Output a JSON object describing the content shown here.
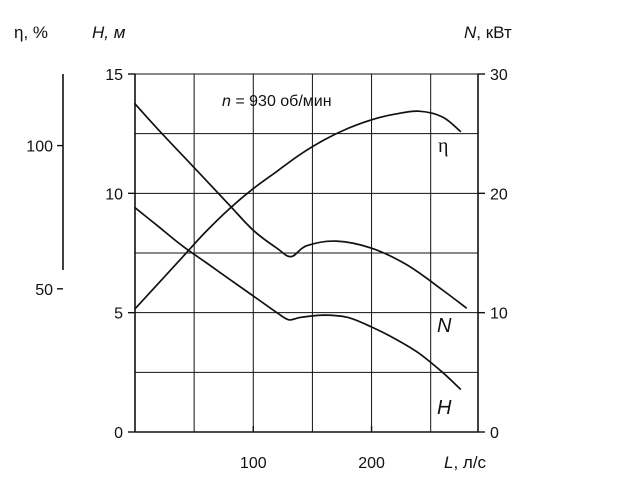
{
  "chart_data": {
    "type": "line",
    "x_axis": {
      "symbol": "L",
      "unit": ", л/с",
      "range": [
        0,
        290
      ],
      "ticks": [
        100,
        200
      ]
    },
    "y_axes": {
      "efficiency": {
        "symbol": "η",
        "unit": ", %",
        "range": [
          0,
          125
        ],
        "ticks": [
          50,
          100
        ]
      },
      "head": {
        "symbol": "H",
        "unit": ", м",
        "range": [
          0,
          15
        ],
        "ticks": [
          0,
          5,
          10,
          15
        ]
      },
      "power": {
        "symbol": "N",
        "unit": ", кВт",
        "range": [
          0,
          30
        ],
        "ticks": [
          0,
          10,
          20,
          30
        ]
      }
    },
    "annotation": {
      "prefix": "n",
      "text": " = 930 об/мин"
    },
    "grid": true,
    "series": [
      {
        "name": "H",
        "axis": "head",
        "x": [
          0,
          20,
          40,
          60,
          80,
          100,
          120,
          130,
          140,
          160,
          180,
          200,
          220,
          240,
          260,
          275
        ],
        "y": [
          9.4,
          8.6,
          7.8,
          7.1,
          6.4,
          5.7,
          5.0,
          4.7,
          4.8,
          4.9,
          4.8,
          4.4,
          3.9,
          3.3,
          2.5,
          1.8
        ]
      },
      {
        "name": "N",
        "axis": "power",
        "x": [
          0,
          20,
          40,
          60,
          80,
          100,
          120,
          132,
          145,
          170,
          200,
          230,
          260,
          280
        ],
        "y": [
          27.5,
          25.3,
          23.2,
          21.1,
          19.0,
          16.9,
          15.4,
          14.7,
          15.6,
          16.0,
          15.4,
          14.0,
          11.9,
          10.4
        ]
      },
      {
        "name": "η",
        "axis": "efficiency",
        "x": [
          0,
          20,
          40,
          60,
          80,
          100,
          120,
          140,
          160,
          180,
          200,
          220,
          240,
          260,
          275
        ],
        "y": [
          43,
          52,
          61,
          70,
          78,
          85,
          91,
          97,
          102,
          106,
          109,
          111,
          112,
          110,
          105
        ]
      }
    ]
  }
}
